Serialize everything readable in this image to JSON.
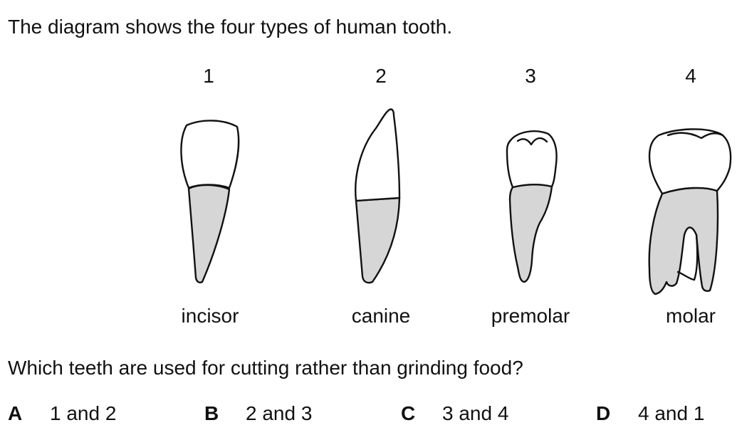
{
  "intro": "The diagram shows the four types of human tooth.",
  "teeth": [
    {
      "number": "1",
      "name": "incisor"
    },
    {
      "number": "2",
      "name": "canine"
    },
    {
      "number": "3",
      "name": "premolar"
    },
    {
      "number": "4",
      "name": "molar"
    }
  ],
  "question": "Which teeth are used for cutting rather than grinding food?",
  "options": [
    {
      "letter": "A",
      "text": "1 and 2"
    },
    {
      "letter": "B",
      "text": "2 and 3"
    },
    {
      "letter": "C",
      "text": "3 and 4"
    },
    {
      "letter": "D",
      "text": "4 and 1"
    }
  ],
  "colors": {
    "root": "#d6d6d6",
    "crown": "#ffffff",
    "outline": "#111111"
  }
}
